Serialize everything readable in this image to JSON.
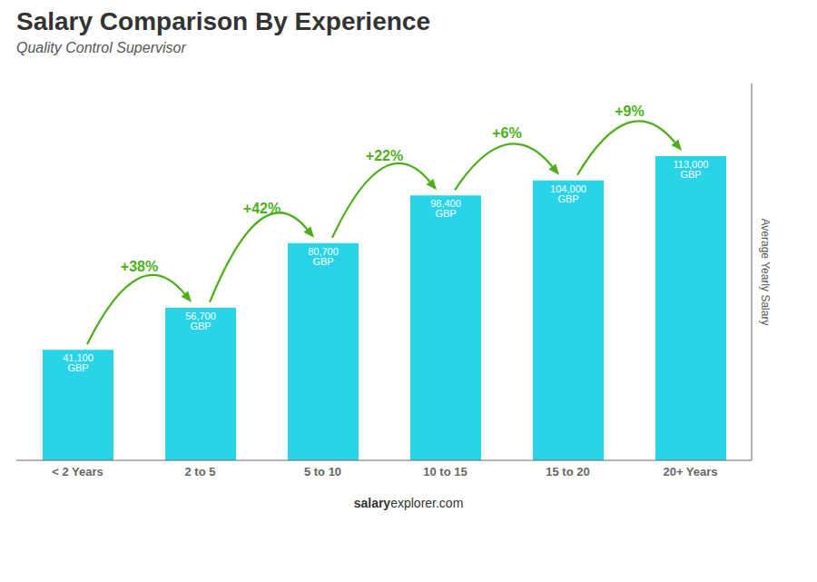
{
  "chart_data": {
    "type": "bar",
    "title": "Salary Comparison By Experience",
    "subtitle": "Quality Control Supervisor",
    "categories": [
      "< 2 Years",
      "2 to 5",
      "5 to 10",
      "10 to 15",
      "15 to 20",
      "20+ Years"
    ],
    "values": [
      41100,
      56700,
      80700,
      98400,
      104000,
      113000
    ],
    "value_labels": [
      "41,100 GBP",
      "56,700 GBP",
      "80,700 GBP",
      "98,400 GBP",
      "104,000 GBP",
      "113,000 GBP"
    ],
    "data_labels": true,
    "color": "#29D3E8",
    "ylabel": "Average Yearly Salary",
    "ylim": [
      0,
      140000
    ],
    "tick_labels": "x",
    "grid": false,
    "annotations": {
      "texts": [
        "+38%",
        "+42%",
        "+22%",
        "+6%",
        "+9%"
      ],
      "color": "#4caf1a"
    },
    "footer": [
      "salary",
      "explorer.com"
    ]
  }
}
